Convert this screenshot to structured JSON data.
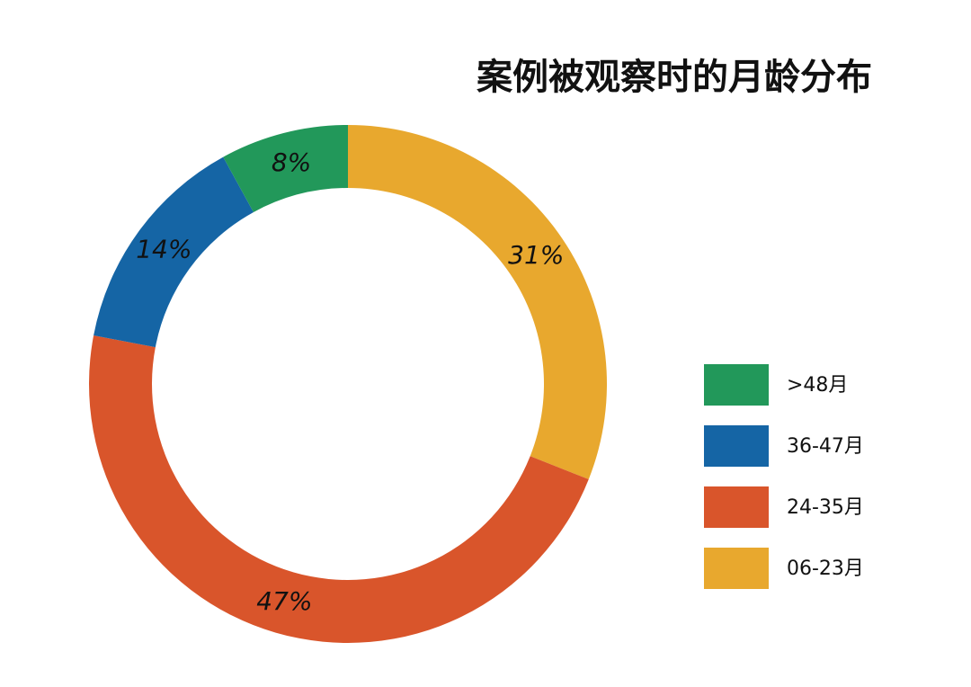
{
  "chart_data": {
    "type": "donut",
    "title": "案例被观察时的月龄分布",
    "categories": [
      ">48月",
      "36-47月",
      "24-35月",
      "06-23月"
    ],
    "series": [
      {
        "values": [
          8,
          14,
          47,
          31
        ],
        "value_labels": [
          "8%",
          "14%",
          "47%",
          "31%"
        ],
        "colors": [
          "#22985a",
          "#1565a5",
          "#d9552b",
          "#e8a82e"
        ]
      }
    ],
    "legend": "right"
  }
}
